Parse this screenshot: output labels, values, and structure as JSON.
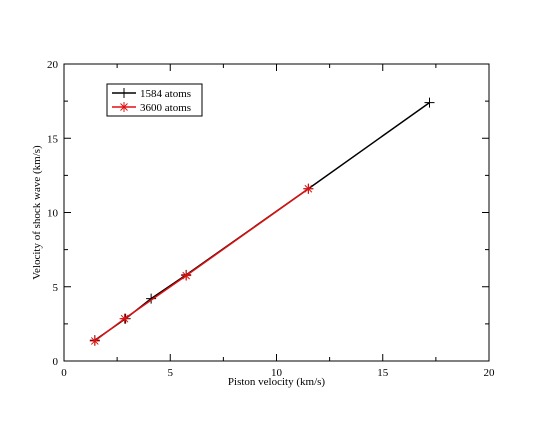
{
  "chart_data": {
    "type": "line",
    "title": "",
    "xlabel": "Piston velocity (km/s)",
    "ylabel": "Velocity of shock wave (km/s)",
    "xlim": [
      0,
      20
    ],
    "ylim": [
      0,
      20
    ],
    "xticks": [
      0,
      5,
      10,
      15,
      20
    ],
    "yticks": [
      0,
      5,
      10,
      15,
      20
    ],
    "grid": false,
    "legend_position": "top-left",
    "series": [
      {
        "name": "1584 atoms",
        "color": "#000000",
        "marker": "plus",
        "x": [
          1.45,
          2.9,
          4.1,
          5.75,
          11.5,
          17.2
        ],
        "y": [
          1.4,
          2.85,
          4.2,
          5.8,
          11.6,
          17.4
        ]
      },
      {
        "name": "3600 atoms",
        "color": "#e01010",
        "marker": "star",
        "x": [
          1.45,
          2.85,
          5.75,
          11.5
        ],
        "y": [
          1.35,
          2.85,
          5.75,
          11.6
        ]
      }
    ]
  }
}
